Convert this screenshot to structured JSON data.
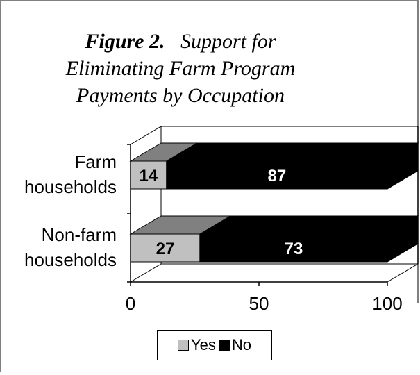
{
  "figure": {
    "title_bold": "Figure 2.",
    "title_line1": "Support for",
    "title_line2": "Eliminating Farm Program",
    "title_line3": "Payments by Occupation"
  },
  "chart_data": {
    "type": "bar",
    "orientation": "horizontal",
    "stacked": true,
    "three_d": true,
    "categories": [
      "Farm households",
      "Non-farm households"
    ],
    "category_lines": [
      [
        "Farm",
        "households"
      ],
      [
        "Non-farm",
        "households"
      ]
    ],
    "series": [
      {
        "name": "Yes",
        "values": [
          14,
          27
        ],
        "color": "#c0c0c0"
      },
      {
        "name": "No",
        "values": [
          87,
          73
        ],
        "color": "#000000"
      }
    ],
    "xticks": [
      "0",
      "50",
      "100"
    ],
    "xlim": [
      0,
      100
    ],
    "grid": false,
    "legend_position": "bottom"
  }
}
